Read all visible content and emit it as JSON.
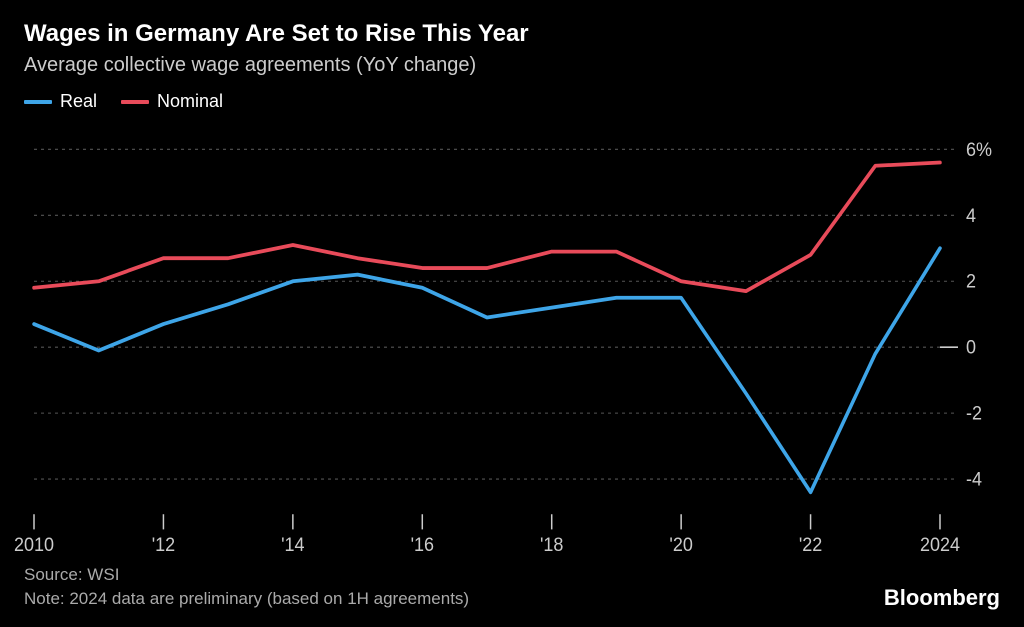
{
  "title": "Wages in Germany Are Set to Rise This Year",
  "subtitle": "Average collective wage agreements (YoY change)",
  "legend": {
    "real": {
      "label": "Real",
      "color": "#3ea5e8"
    },
    "nominal": {
      "label": "Nominal",
      "color": "#e84b5a"
    }
  },
  "chart": {
    "type": "line",
    "background_color": "#000000",
    "grid_color": "#555555",
    "axis_color": "#cccccc",
    "text_color": "#cccccc",
    "line_width": 3.5,
    "x": {
      "years": [
        2010,
        2011,
        2012,
        2013,
        2014,
        2015,
        2016,
        2017,
        2018,
        2019,
        2020,
        2021,
        2022,
        2023,
        2024
      ],
      "tick_years": [
        2010,
        2012,
        2014,
        2016,
        2018,
        2020,
        2022,
        2024
      ],
      "tick_labels": [
        "2010",
        "'12",
        "'14",
        "'16",
        "'18",
        "'20",
        "'22",
        "2024"
      ]
    },
    "y": {
      "min": -5,
      "max": 6.5,
      "ticks": [
        -4,
        -2,
        0,
        2,
        4,
        6
      ],
      "tick_labels": [
        "-4",
        "-2",
        "0",
        "2",
        "4",
        "6%"
      ]
    },
    "series": {
      "real": [
        0.7,
        -0.1,
        0.7,
        1.3,
        2.0,
        2.2,
        1.8,
        0.9,
        1.2,
        1.5,
        1.5,
        -1.4,
        -4.4,
        -0.2,
        3.0
      ],
      "nominal": [
        1.8,
        2.0,
        2.7,
        2.7,
        3.1,
        2.7,
        2.4,
        2.4,
        2.9,
        2.9,
        2.0,
        1.7,
        2.8,
        5.5,
        5.6
      ]
    }
  },
  "footer": {
    "source": "Source: WSI",
    "note": "Note: 2024 data are preliminary (based on 1H agreements)",
    "brand": "Bloomberg"
  }
}
